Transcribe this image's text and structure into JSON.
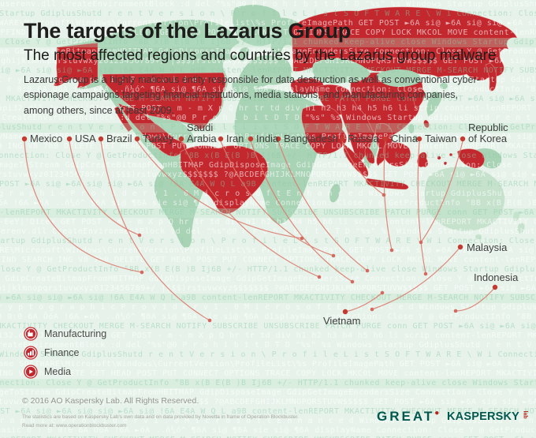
{
  "header": {
    "title": "The targets of the Lazarus Group",
    "subtitle": "The most affected regions and countries by the Lazarus group malware",
    "description": "Lazarus Group is a highly malicious entity responsible for data destruction as well as conventional cyber-espionage campaigns targeting financial institutions, media stations, and manufacturing companies, among others, since at least 2009."
  },
  "map": {
    "labels": [
      {
        "line1": "Mexico"
      },
      {
        "line1": "USA"
      },
      {
        "line1": "Brazil"
      },
      {
        "line1": "Turkey"
      },
      {
        "line1": "Saudi",
        "line2": "Arabia"
      },
      {
        "line1": "Iran"
      },
      {
        "line1": "India"
      },
      {
        "line1": "Bangladesh"
      },
      {
        "line1": "Russia"
      },
      {
        "line1": "China"
      },
      {
        "line1": "Taiwan"
      },
      {
        "line1": "Republic",
        "line2": "of Korea"
      },
      {
        "line1": "Malaysia"
      },
      {
        "line1": "Indonesia"
      },
      {
        "line1": "Vietnam"
      }
    ],
    "highlighted_countries": [
      "Mexico",
      "USA",
      "Brazil",
      "Turkey",
      "Saudi Arabia",
      "Iran",
      "India",
      "Bangladesh",
      "Russia",
      "China",
      "Taiwan",
      "Republic of Korea",
      "Malaysia",
      "Indonesia",
      "Vietnam"
    ]
  },
  "legend": {
    "items": [
      {
        "label": "Manufacturing",
        "icon": "factory-icon"
      },
      {
        "label": "Finance",
        "icon": "bar-chart-icon"
      },
      {
        "label": "Media",
        "icon": "play-icon"
      }
    ]
  },
  "footer": {
    "copyright": "© 2016 AO Kaspersky Lab. All Rights Reserved.",
    "note": "The statistics are based on Kaspersky Lab's own data and on data provided by Novetta in frame of Operation Blockbuster.",
    "read_more": "Read more at: www.operationblockbuster.com",
    "great_logo": "GREAT",
    "kaspersky_logo": "KASPERSKY",
    "kaspersky_lab": "lab"
  },
  "colors": {
    "background": "#e7f3ea",
    "land_green": "#a8d3b5",
    "land_light": "#c6e2cd",
    "accent_red": "#c2282e",
    "line_salmon": "#dc7a6e",
    "dot_red": "#c43a31",
    "target_dot": "#d4695f",
    "kaspersky_green": "#00584e"
  },
  "background_pattern": {
    "fragments": [
      "displayName  SOFTWARE\\Microsoft\\Windows\\CurrentVersion\\ProfileList\\%s  ProfileImagePath",
      "GET POST  ►6A si@ ►6A si@ si@ ►6A si@ !6A E4A W Q L  a9B",
      "userenv.dll CreateEnvironmentBlock  :d del \"%s\"@0  P r o h i b i t D T D  \"%s\"  %s",
      "GdipSaveImageToStream  GdipCreateBitmapFromHBITMAP GdipDisposeImage  GdipGetImageEncodersSize",
      "content-lenREPORT  MKACTIVITY CHECKOUT MERGE M-SEARCH NOTIFY SUBSCRIBE UNSUBSCRIBE PATCH PURGE conn",
      "PROPFIND SEARCH  ING V8 7h0 DELETE  GET HEAD  POST  PUT CONNECT OPTIONS TRACE  COPY  LOCK  MKCOL  MOVE",
      "C r y p t o g r a p h i c   P r o v i d e r   v 1 . 0   M i c r o s o f t   E n h a n c e d",
      "Windows Startup  GdiplusShutd r e n t V e r s i o n \\ P r o f i l e L i s t  S O F T W A R E \\ W i",
      "abcdefghijklmnopqrstuvwxyz0123456789+/ |$$$)rstuvwxyz$$$$$$$ ?@ABCDEFGHIJKLMNOPQRSTUVW$$$$$",
      "advapi32.dll Ju-EeY|'Qice+  GET POST - m - m X p Q  hr  tr  td div h1  h2  h3  h4  h5  h6  li  scrip",
      "Connection: Close  Y @      GetProductInfo  °8B  x(B E(B  )B  Ij6B +/- HTTP/1.1  chunked keep-alive  close",
      "Basic  0 : 0  0:0 6A ÖóA !6A ►óA  ..ñ¼ó^  ¶6A si@ ¶6A sie si@ ¶6A  displayName"
    ]
  }
}
